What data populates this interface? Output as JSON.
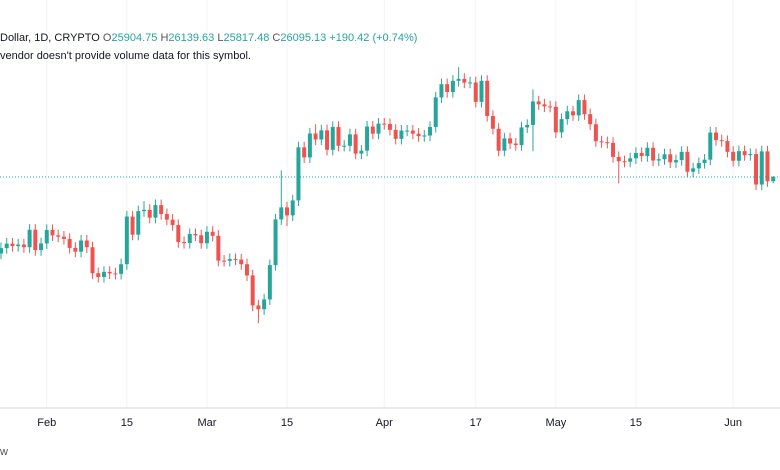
{
  "header": {
    "symbol": "Dollar, 1D, CRYPTO",
    "o": "O",
    "h": "H",
    "l": "L",
    "c": "C",
    "change": "+190.42 (+0.74%)",
    "notice": "vendor doesn't provide volume data for this symbol."
  },
  "footer": "w",
  "chart_data": {
    "type": "candlestick",
    "x": [
      "01-24",
      "01-25",
      "01-26",
      "01-27",
      "01-28",
      "01-29",
      "01-30",
      "01-31",
      "02-01",
      "02-02",
      "02-03",
      "02-04",
      "02-05",
      "02-06",
      "02-07",
      "02-08",
      "02-09",
      "02-10",
      "02-11",
      "02-12",
      "02-13",
      "02-14",
      "02-15",
      "02-16",
      "02-17",
      "02-18",
      "02-19",
      "02-20",
      "02-21",
      "02-22",
      "02-23",
      "02-24",
      "02-25",
      "02-26",
      "02-27",
      "02-28",
      "03-01",
      "03-02",
      "03-03",
      "03-04",
      "03-05",
      "03-06",
      "03-07",
      "03-08",
      "03-09",
      "03-10",
      "03-11",
      "03-12",
      "03-13",
      "03-14",
      "03-15",
      "03-16",
      "03-17",
      "03-18",
      "03-19",
      "03-20",
      "03-21",
      "03-22",
      "03-23",
      "03-24",
      "03-25",
      "03-26",
      "03-27",
      "03-28",
      "03-29",
      "03-30",
      "03-31",
      "04-01",
      "04-02",
      "04-03",
      "04-04",
      "04-05",
      "04-06",
      "04-07",
      "04-08",
      "04-09",
      "04-10",
      "04-11",
      "04-12",
      "04-13",
      "04-14",
      "04-15",
      "04-16",
      "04-17",
      "04-18",
      "04-19",
      "04-20",
      "04-21",
      "04-22",
      "04-23",
      "04-24",
      "04-25",
      "04-26",
      "04-27",
      "04-28",
      "04-29",
      "04-30",
      "05-01",
      "05-02",
      "05-03",
      "05-04",
      "05-05",
      "05-06",
      "05-07",
      "05-08",
      "05-09",
      "05-10",
      "05-11",
      "05-12",
      "05-13",
      "05-14",
      "05-15",
      "05-16",
      "05-17",
      "05-18",
      "05-19",
      "05-20",
      "05-21",
      "05-22",
      "05-23",
      "05-24",
      "05-25",
      "05-26",
      "05-27",
      "05-28",
      "05-29",
      "05-30",
      "05-31",
      "06-01",
      "06-02",
      "06-03",
      "06-04",
      "06-05",
      "06-06",
      "06-07",
      "06-08"
    ],
    "open": [
      22680,
      22920,
      23120,
      23010,
      23080,
      22960,
      23740,
      22830,
      23130,
      23730,
      23490,
      23430,
      23330,
      22930,
      22760,
      23260,
      22960,
      21800,
      21630,
      21860,
      21790,
      21770,
      22200,
      24330,
      23520,
      24570,
      24630,
      24280,
      24840,
      24440,
      24190,
      23950,
      23190,
      23150,
      23550,
      23490,
      23140,
      23650,
      23470,
      22360,
      22350,
      22430,
      22410,
      22200,
      21700,
      20360,
      20190,
      20630,
      22160,
      24200,
      24740,
      24380,
      25050,
      27420,
      26970,
      28040,
      27770,
      28180,
      27310,
      28330,
      27490,
      27490,
      28000,
      27140,
      27270,
      28350,
      28030,
      28480,
      28460,
      28200,
      27800,
      28170,
      28170,
      28030,
      27920,
      27950,
      28330,
      29650,
      30240,
      29890,
      30390,
      30480,
      30310,
      30320,
      29450,
      30390,
      28820,
      28250,
      27270,
      27820,
      27590,
      27520,
      28310,
      28420,
      29470,
      29340,
      29250,
      29230,
      28090,
      28680,
      29030,
      28850,
      29530,
      28900,
      28450,
      27690,
      27650,
      27620,
      26990,
      26800,
      26780,
      26930,
      27170,
      27030,
      27400,
      26830,
      26890,
      27110,
      26750,
      26850,
      27220,
      26330,
      26480,
      26720,
      26870,
      28080,
      27740,
      27700,
      27220,
      26820,
      27250,
      27070,
      27120,
      25760,
      27240,
      25904.75
    ],
    "high": [
      23170,
      23370,
      23370,
      23330,
      23330,
      23990,
      23990,
      23380,
      23980,
      23980,
      23740,
      23680,
      23580,
      23180,
      23510,
      23510,
      23210,
      22050,
      22110,
      22110,
      22040,
      22450,
      24580,
      24580,
      24820,
      25020,
      24880,
      25090,
      25090,
      24690,
      24440,
      24200,
      23440,
      23800,
      23800,
      23740,
      23900,
      23900,
      23720,
      22610,
      22680,
      22680,
      22660,
      22450,
      21950,
      20610,
      20880,
      22410,
      24450,
      26390,
      24990,
      25300,
      27670,
      27670,
      28290,
      28450,
      28430,
      28430,
      28580,
      28580,
      27740,
      28250,
      28250,
      27520,
      28600,
      28600,
      28730,
      28730,
      28710,
      28450,
      28420,
      28420,
      28420,
      28280,
      28200,
      28580,
      29900,
      30490,
      30490,
      30640,
      31000,
      30730,
      30570,
      30570,
      30640,
      30640,
      29070,
      28500,
      28070,
      28070,
      27840,
      28560,
      28670,
      30000,
      29720,
      29590,
      29500,
      29480,
      28930,
      29280,
      29280,
      29780,
      29780,
      29150,
      28700,
      27940,
      27900,
      27870,
      27240,
      27050,
      27180,
      27420,
      27420,
      27650,
      27650,
      27140,
      27360,
      27360,
      27100,
      27470,
      27470,
      26730,
      26970,
      27120,
      28330,
      28330,
      27990,
      27950,
      27470,
      27500,
      27500,
      27370,
      27370,
      27490,
      27490,
      26139.63
    ],
    "low": [
      22430,
      22670,
      22760,
      22760,
      22710,
      22710,
      22580,
      22580,
      22880,
      23240,
      23180,
      23080,
      22680,
      22510,
      22510,
      22710,
      21550,
      21380,
      21380,
      21540,
      21520,
      21520,
      21950,
      23270,
      23270,
      24320,
      24030,
      24030,
      24190,
      23940,
      23700,
      22940,
      22900,
      22900,
      23240,
      22890,
      22890,
      23220,
      22110,
      22100,
      22100,
      22160,
      21950,
      21450,
      20110,
      19570,
      19940,
      20380,
      21910,
      23950,
      23900,
      24130,
      24800,
      26720,
      26720,
      27520,
      27520,
      27060,
      27060,
      27240,
      27240,
      27240,
      26890,
      26890,
      27020,
      27780,
      27780,
      28210,
      27950,
      27550,
      27550,
      27920,
      27780,
      27670,
      27670,
      27700,
      28080,
      29400,
      29640,
      29640,
      30140,
      30060,
      30060,
      29200,
      29200,
      28570,
      28000,
      27020,
      27020,
      27340,
      27270,
      27270,
      28060,
      27240,
      29090,
      29000,
      28980,
      27840,
      27840,
      28430,
      28600,
      28600,
      28650,
      28200,
      27440,
      27400,
      27370,
      26740,
      25810,
      26530,
      26530,
      26680,
      26780,
      26780,
      26580,
      26580,
      26640,
      26500,
      26500,
      26600,
      26080,
      26080,
      26230,
      26470,
      26620,
      27490,
      27450,
      26970,
      26570,
      26570,
      26820,
      26820,
      25510,
      25510,
      25660,
      25817.48
    ],
    "close": [
      22920,
      23120,
      23010,
      23080,
      22960,
      23740,
      22830,
      23130,
      23730,
      23490,
      23430,
      23330,
      22930,
      22760,
      23260,
      22960,
      21800,
      21630,
      21860,
      21790,
      21770,
      22200,
      24330,
      23520,
      24570,
      24630,
      24280,
      24840,
      24440,
      24190,
      23950,
      23190,
      23150,
      23550,
      23490,
      23140,
      23650,
      23470,
      22360,
      22350,
      22430,
      22410,
      22200,
      21700,
      20360,
      20190,
      20630,
      22160,
      24200,
      24740,
      24380,
      25050,
      27420,
      26970,
      28040,
      27770,
      28180,
      27310,
      28330,
      27490,
      27490,
      28000,
      27140,
      27270,
      28350,
      28030,
      28480,
      28460,
      28200,
      27800,
      28170,
      28170,
      28030,
      27920,
      27950,
      28330,
      29650,
      30240,
      29890,
      30390,
      30480,
      30310,
      30320,
      29450,
      30390,
      28820,
      28250,
      27270,
      27820,
      27590,
      27520,
      28310,
      28420,
      29470,
      29340,
      29250,
      29230,
      28090,
      28680,
      29030,
      28850,
      29530,
      28900,
      28450,
      27690,
      27650,
      27620,
      26990,
      26800,
      26780,
      26930,
      27170,
      27030,
      27400,
      26830,
      26890,
      27110,
      26750,
      26850,
      27220,
      26330,
      26480,
      26720,
      26870,
      28080,
      27740,
      27700,
      27220,
      26820,
      27250,
      27070,
      27120,
      25760,
      27240,
      25905,
      26095.13
    ],
    "xticks": [
      {
        "value": "02-01",
        "label": "Feb"
      },
      {
        "value": "02-15",
        "label": "15"
      },
      {
        "value": "03-01",
        "label": "Mar"
      },
      {
        "value": "03-15",
        "label": "15"
      },
      {
        "value": "04-01",
        "label": "Apr"
      },
      {
        "value": "04-17",
        "label": "17"
      },
      {
        "value": "05-01",
        "label": "May"
      },
      {
        "value": "05-15",
        "label": "15"
      },
      {
        "value": "06-01",
        "label": "Jun"
      }
    ],
    "ylim": [
      15780,
      34000
    ],
    "up_color": "#26a69a",
    "down_color": "#ef5350",
    "grid": true
  }
}
